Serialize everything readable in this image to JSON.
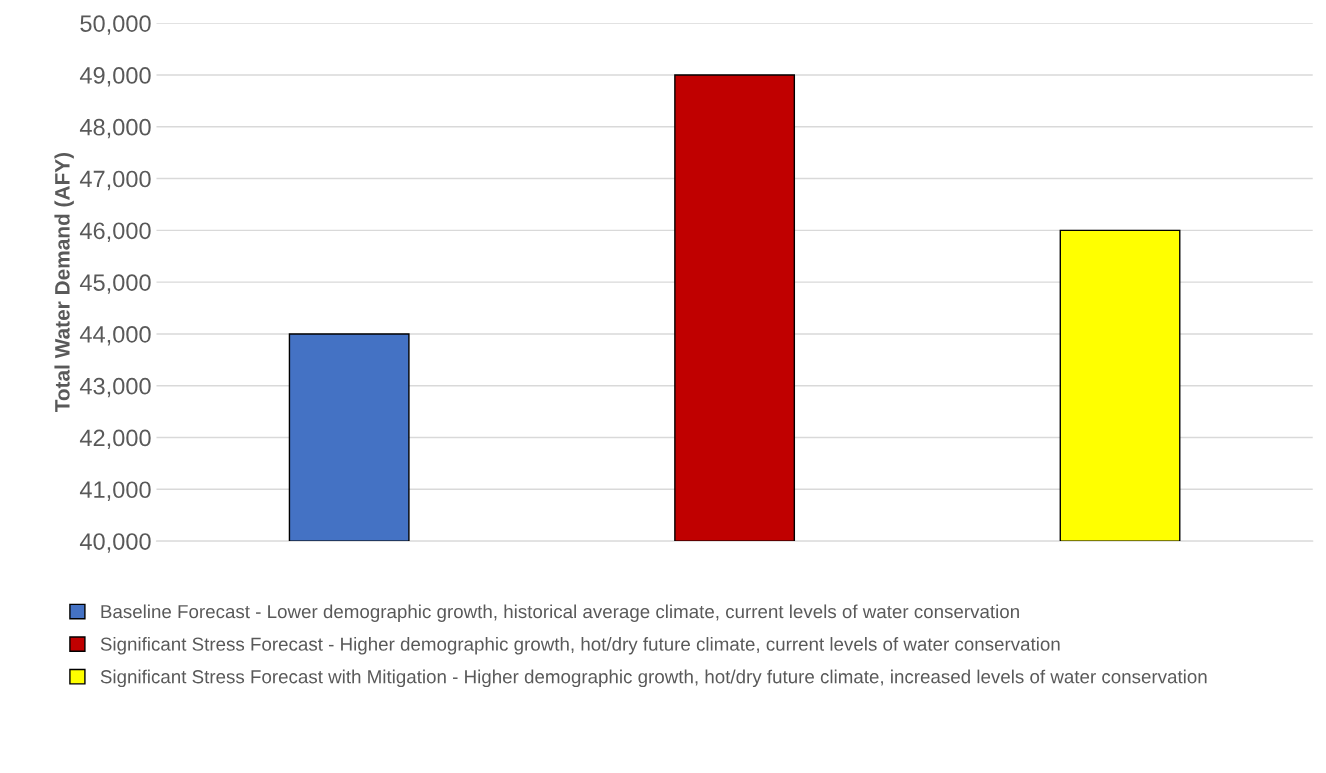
{
  "chart_data": {
    "type": "bar",
    "ylabel": "Total Water Demand (AFY)",
    "categories": [
      null,
      null,
      null
    ],
    "series": [
      {
        "name": "Baseline Forecast - Lower demographic growth, historical average climate, current levels of water conservation",
        "color": "#4472c4",
        "values": [
          44000,
          null,
          null
        ]
      },
      {
        "name": "Significant Stress Forecast - Higher demographic growth, hot/dry future climate, current levels of water conservation",
        "color": "#c00000",
        "values": [
          null,
          49000,
          null
        ]
      },
      {
        "name": "Significant Stress Forecast with Mitigation - Higher demographic growth, hot/dry future climate, increased levels of water conservation",
        "color": "#ffff00",
        "values": [
          null,
          null,
          46000
        ]
      }
    ],
    "ylim": [
      40000,
      50000
    ],
    "yticks": [
      {
        "value": 40000,
        "label": "40,000"
      },
      {
        "value": 41000,
        "label": "41,000"
      },
      {
        "value": 42000,
        "label": "42,000"
      },
      {
        "value": 43000,
        "label": "43,000"
      },
      {
        "value": 44000,
        "label": "44,000"
      },
      {
        "value": 45000,
        "label": "45,000"
      },
      {
        "value": 46000,
        "label": "46,000"
      },
      {
        "value": 47000,
        "label": "47,000"
      },
      {
        "value": 48000,
        "label": "48,000"
      },
      {
        "value": 49000,
        "label": "49,000"
      },
      {
        "value": 50000,
        "label": "50,000"
      }
    ],
    "grid": "y",
    "legend": "bottom"
  }
}
